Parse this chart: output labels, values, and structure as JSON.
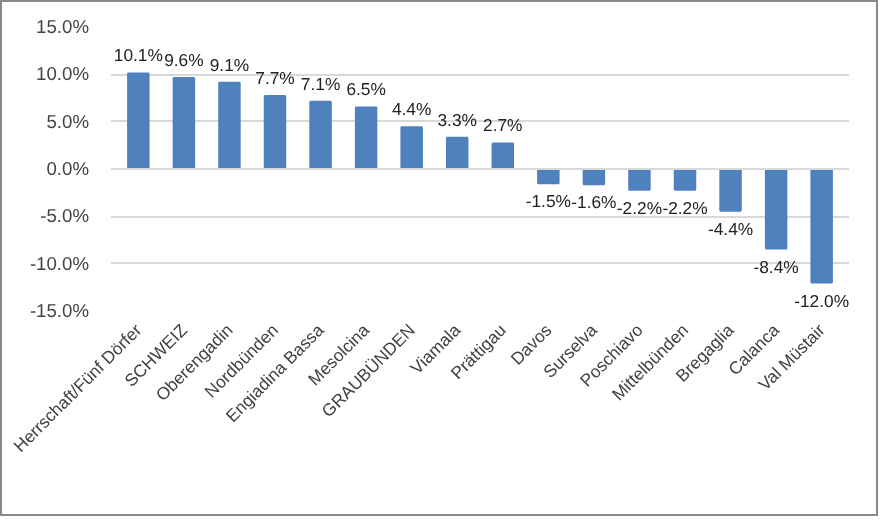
{
  "chart_data": {
    "type": "bar",
    "categories": [
      "Herrschaft/Fünf Dörfer",
      "SCHWEIZ",
      "Oberengadin",
      "Nordbünden",
      "Engiadina Bassa",
      "Mesolcina",
      "GRAUBÜNDEN",
      "Viamala",
      "Prättigau",
      "Davos",
      "Surselva",
      "Poschiavo",
      "Mittelbünden",
      "Bregaglia",
      "Calanca",
      "Val Müstair"
    ],
    "values": [
      10.1,
      9.6,
      9.1,
      7.7,
      7.1,
      6.5,
      4.4,
      3.3,
      2.7,
      -1.5,
      -1.6,
      -2.2,
      -2.2,
      -4.4,
      -8.4,
      -12.0
    ],
    "value_labels": [
      "10.1%",
      "9.6%",
      "9.1%",
      "7.7%",
      "7.1%",
      "6.5%",
      "4.4%",
      "3.3%",
      "2.7%",
      "-1.5%",
      "-1.6%",
      "-2.2%",
      "-2.2%",
      "-4.4%",
      "-8.4%",
      "-12.0%"
    ],
    "color": "#4f81bd",
    "ylim": [
      -15,
      15
    ],
    "yticks": [
      {
        "value": -15,
        "label": "-15.0%"
      },
      {
        "value": -10,
        "label": "-10.0%"
      },
      {
        "value": -5,
        "label": "-5.0%"
      },
      {
        "value": 0,
        "label": "0.0%"
      },
      {
        "value": 5,
        "label": "5.0%"
      },
      {
        "value": 10,
        "label": "10.0%"
      },
      {
        "value": 15,
        "label": "15.0%"
      }
    ],
    "grid": "y"
  }
}
